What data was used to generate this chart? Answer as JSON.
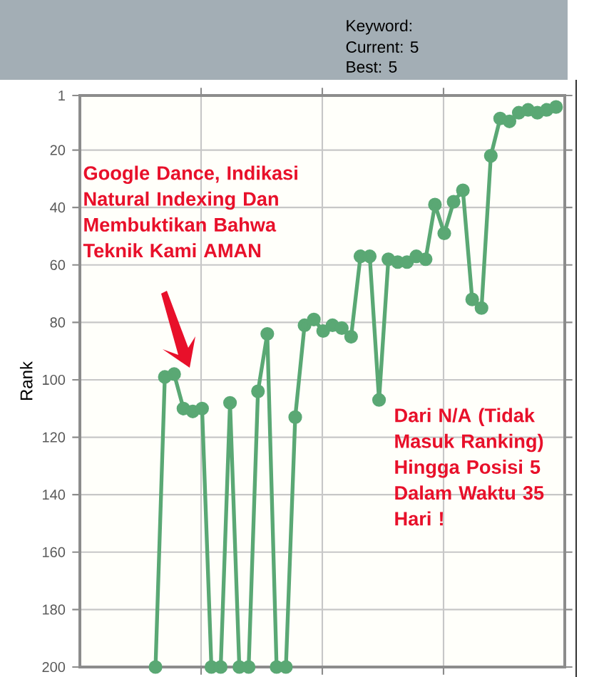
{
  "chart_data": {
    "type": "line",
    "ylabel": "Rank",
    "categories": [
      null,
      null,
      null,
      null,
      null,
      null,
      null,
      null,
      null,
      null,
      null,
      null,
      null,
      null,
      null,
      null,
      null,
      null,
      null,
      null,
      null,
      null,
      null,
      null,
      null,
      null,
      null,
      null,
      null,
      null,
      null,
      null,
      null,
      null,
      null,
      null,
      null,
      null,
      null,
      null,
      null,
      null,
      null,
      null
    ],
    "values": [
      200,
      99,
      98,
      110,
      111,
      110,
      200,
      200,
      108,
      200,
      200,
      104,
      84,
      200,
      200,
      113,
      81,
      79,
      83,
      81,
      82,
      85,
      57,
      57,
      107,
      58,
      59,
      59,
      57,
      58,
      39,
      49,
      38,
      34,
      72,
      75,
      22,
      9,
      10,
      7,
      6,
      7,
      6,
      5
    ],
    "color": "#5aa874",
    "marker": "circle",
    "line_style": "solid",
    "ylim": [
      200,
      1
    ],
    "yticks": [
      1,
      20,
      40,
      60,
      80,
      100,
      120,
      140,
      160,
      180,
      200
    ],
    "grid": true,
    "tick_labels": "y",
    "annotations": [
      "Keyword:",
      "Current: 5",
      "Best: 5",
      "Google Dance, Indikasi Natural Indexing Dan Membuktikan Bahwa Teknik Kami AMAN",
      "Dari N/A (Tidak Masuk Ranking) Hingga Posisi 5 Dalam Waktu 35 Hari !"
    ]
  }
}
